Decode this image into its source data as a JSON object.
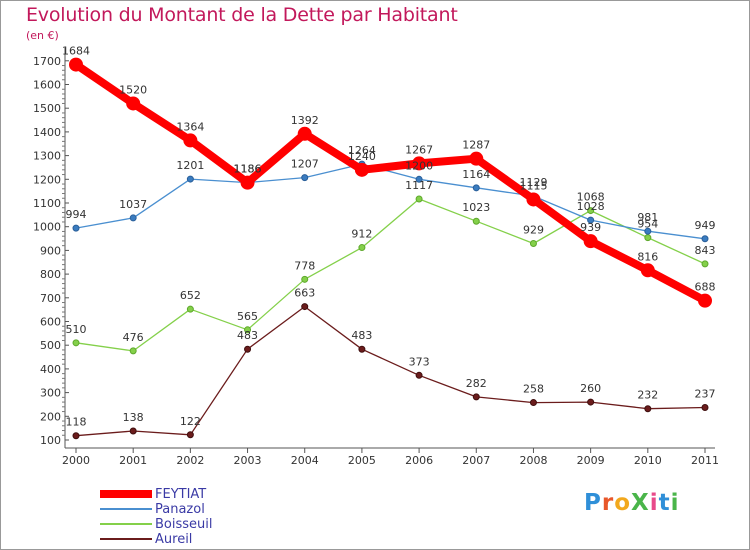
{
  "chart_data": {
    "type": "line",
    "title": "Evolution du Montant de la Dette par Habitant",
    "unit": "(en €)",
    "x": [
      "2000",
      "2001",
      "2002",
      "2003",
      "2004",
      "2005",
      "2006",
      "2007",
      "2008",
      "2009",
      "2010",
      "2011"
    ],
    "ylim": [
      100,
      1700
    ],
    "yticks": [
      "100",
      "200",
      "300",
      "400",
      "500",
      "600",
      "700",
      "800",
      "900",
      "1000",
      "1100",
      "1200",
      "1300",
      "1400",
      "1500",
      "1600",
      "1700"
    ],
    "grid": false,
    "legend_position": "bottom-left",
    "series": [
      {
        "name": "FEYTIAT",
        "color": "#ff0000",
        "values": [
          1684,
          1520,
          1364,
          1186,
          1392,
          1240,
          1267,
          1287,
          1115,
          939,
          816,
          688
        ],
        "labels": [
          "1684",
          "1520",
          "1364",
          "1186",
          "1392",
          "1240",
          "1267",
          "1287",
          "1115",
          "939",
          "816",
          "688"
        ]
      },
      {
        "name": "Panazol",
        "color": "#4a8fd0",
        "values": [
          994,
          1037,
          1201,
          1186,
          1207,
          1264,
          1200,
          1164,
          1129,
          1028,
          981,
          949
        ],
        "labels": [
          "994",
          "1037",
          "1201",
          "1186",
          "1207",
          "1264",
          "1200",
          "1164",
          "1129",
          "1028",
          "981",
          "949"
        ]
      },
      {
        "name": "Boisseuil",
        "color": "#84d04a",
        "values": [
          510,
          476,
          652,
          565,
          778,
          912,
          1117,
          1023,
          929,
          1068,
          954,
          843
        ],
        "labels": [
          "510",
          "476",
          "652",
          "565",
          "778",
          "912",
          "1117",
          "1023",
          "929",
          "1068",
          "954",
          "843"
        ]
      },
      {
        "name": "Aureil",
        "color": "#6b1c1c",
        "values": [
          118,
          138,
          122,
          483,
          663,
          483,
          373,
          282,
          258,
          260,
          232,
          237
        ],
        "labels": [
          "118",
          "138",
          "122",
          "483",
          "663",
          "483",
          "373",
          "282",
          "258",
          "260",
          "232",
          "237"
        ]
      }
    ]
  },
  "brand": {
    "text": "ProXiti",
    "colors": [
      "#2f8fd8",
      "#e8572a",
      "#f2a81d",
      "#4ab54a",
      "#e84a8a",
      "#2f8fd8",
      "#4ab54a"
    ]
  }
}
